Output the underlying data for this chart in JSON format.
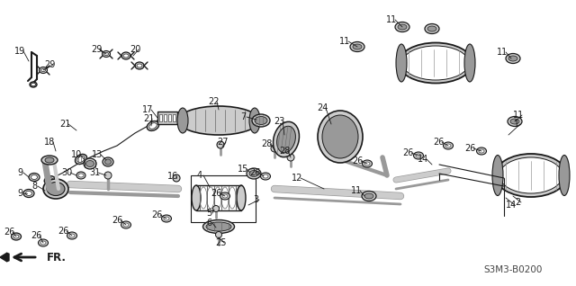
{
  "bg_color": "#ffffff",
  "lc": "#1a1a1a",
  "gray_light": "#cccccc",
  "gray_mid": "#999999",
  "gray_dark": "#666666",
  "diagram_ref": "S3M3-B0200",
  "label_fs": 7.0,
  "small_fs": 6.5
}
